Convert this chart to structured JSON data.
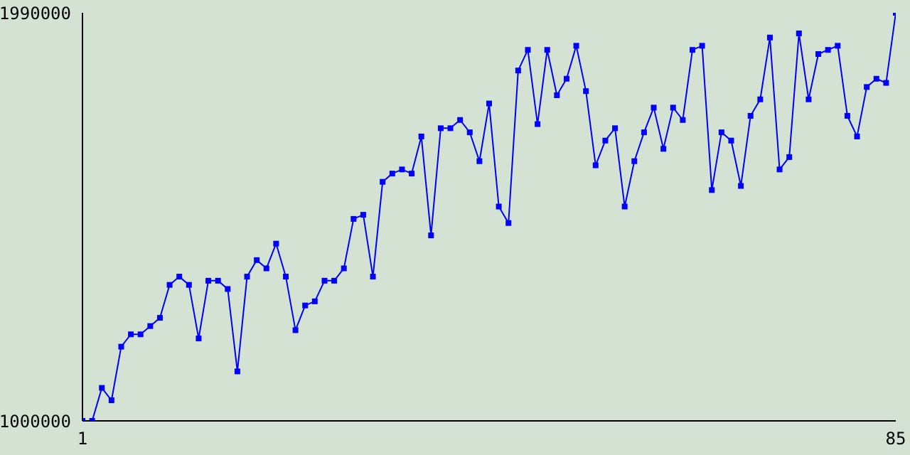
{
  "chart_data": {
    "type": "line",
    "x": [
      1,
      2,
      3,
      4,
      5,
      6,
      7,
      8,
      9,
      10,
      11,
      12,
      13,
      14,
      15,
      16,
      17,
      18,
      19,
      20,
      21,
      22,
      23,
      24,
      25,
      26,
      27,
      28,
      29,
      30,
      31,
      32,
      33,
      34,
      35,
      36,
      37,
      38,
      39,
      40,
      41,
      42,
      43,
      44,
      45,
      46,
      47,
      48,
      49,
      50,
      51,
      52,
      53,
      54,
      55,
      56,
      57,
      58,
      59,
      60,
      61,
      62,
      63,
      64,
      65,
      66,
      67,
      68,
      69,
      70,
      71,
      72,
      73,
      74,
      75,
      76,
      77,
      78,
      79,
      80,
      81,
      82,
      83,
      84,
      85
    ],
    "series": [
      {
        "color": "#0000ff",
        "values": [
          1000000,
          1000000,
          1080000,
          1050000,
          1180000,
          1210000,
          1210000,
          1230000,
          1250000,
          1330000,
          1350000,
          1330000,
          1200000,
          1340000,
          1340000,
          1320000,
          1120000,
          1350000,
          1390000,
          1370000,
          1430000,
          1350000,
          1220000,
          1280000,
          1290000,
          1340000,
          1340000,
          1370000,
          1490000,
          1500000,
          1350000,
          1580000,
          1600000,
          1610000,
          1600000,
          1690000,
          1450000,
          1710000,
          1710000,
          1730000,
          1700000,
          1630000,
          1770000,
          1520000,
          1480000,
          1850000,
          1900000,
          1720000,
          1900000,
          1790000,
          1830000,
          1910000,
          1800000,
          1620000,
          1680000,
          1710000,
          1520000,
          1630000,
          1700000,
          1760000,
          1660000,
          1760000,
          1730000,
          1900000,
          1910000,
          1560000,
          1700000,
          1680000,
          1570000,
          1740000,
          1780000,
          1930000,
          1610000,
          1640000,
          1940000,
          1780000,
          1890000,
          1900000,
          1910000,
          1740000,
          1690000,
          1810000,
          1830000,
          1820000,
          1990000
        ]
      }
    ],
    "xlim": [
      1,
      85
    ],
    "xticks": [
      1,
      85
    ],
    "ylim": [
      1000000,
      1990000
    ],
    "yticks": [
      1000000,
      1990000
    ],
    "grid": false,
    "marker": "square",
    "line_style": "solid"
  }
}
